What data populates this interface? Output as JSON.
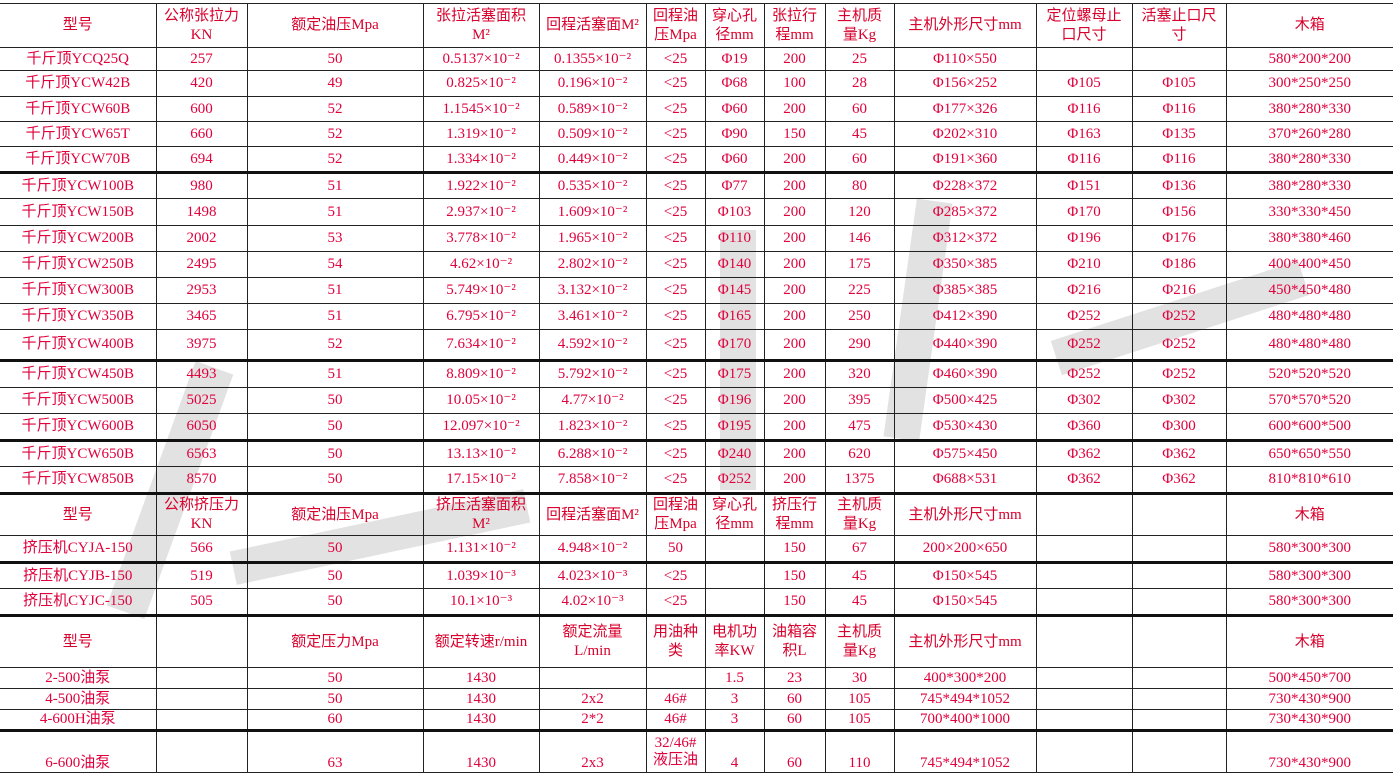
{
  "colors": {
    "text": "#e0003c",
    "header": "#d8002c",
    "border": "#222222"
  },
  "sections": [
    {
      "header": [
        "型号",
        "公称张拉力\nKN",
        "额定油压Mpa",
        "张拉活塞面积\nM²",
        "回程活塞面M²",
        "回程油\n压Mpa",
        "穿心孔\n径mm",
        "张拉行\n程mm",
        "主机质\n量Kg",
        "主机外形尺寸mm",
        "定位螺母止\n口尺寸",
        "活塞止口尺\n寸",
        "木箱"
      ],
      "rows": [
        [
          "千斤顶YCQ25Q",
          "257",
          "50",
          "0.5137×10⁻²",
          "0.1355×10⁻²",
          "<25",
          "Φ19",
          "200",
          "25",
          "Φ110×550",
          "",
          "",
          "580*200*200"
        ],
        [
          "千斤顶YCW42B",
          "420",
          "49",
          "0.825×10⁻²",
          "0.196×10⁻²",
          "<25",
          "Φ68",
          "100",
          "28",
          "Φ156×252",
          "Φ105",
          "Φ105",
          "300*250*250"
        ],
        [
          "千斤顶YCW60B",
          "600",
          "52",
          "1.1545×10⁻²",
          "0.589×10⁻²",
          "<25",
          "Φ60",
          "200",
          "60",
          "Φ177×326",
          "Φ116",
          "Φ116",
          "380*280*330"
        ],
        [
          "千斤顶YCW65T",
          "660",
          "52",
          "1.319×10⁻²",
          "0.509×10⁻²",
          "<25",
          "Φ90",
          "150",
          "45",
          "Φ202×310",
          "Φ163",
          "Φ135",
          "370*260*280"
        ],
        [
          "千斤顶YCW70B",
          "694",
          "52",
          "1.334×10⁻²",
          "0.449×10⁻²",
          "<25",
          "Φ60",
          "200",
          "60",
          "Φ191×360",
          "Φ116",
          "Φ116",
          "380*280*330"
        ],
        [
          "千斤顶YCW100B",
          "980",
          "51",
          "1.922×10⁻²",
          "0.535×10⁻²",
          "<25",
          "Φ77",
          "200",
          "80",
          "Φ228×372",
          "Φ151",
          "Φ136",
          "380*280*330"
        ],
        [
          "千斤顶YCW150B",
          "1498",
          "51",
          "2.937×10⁻²",
          "1.609×10⁻²",
          "<25",
          "Φ103",
          "200",
          "120",
          "Φ285×372",
          "Φ170",
          "Φ156",
          "330*330*450"
        ],
        [
          "千斤顶YCW200B",
          "2002",
          "53",
          "3.778×10⁻²",
          "1.965×10⁻²",
          "<25",
          "Φ110",
          "200",
          "146",
          "Φ312×372",
          "Φ196",
          "Φ176",
          "380*380*460"
        ],
        [
          "千斤顶YCW250B",
          "2495",
          "54",
          "4.62×10⁻²",
          "2.802×10⁻²",
          "<25",
          "Φ140",
          "200",
          "175",
          "Φ350×385",
          "Φ210",
          "Φ186",
          "400*400*450"
        ],
        [
          "千斤顶YCW300B",
          "2953",
          "51",
          "5.749×10⁻²",
          "3.132×10⁻²",
          "<25",
          "Φ145",
          "200",
          "225",
          "Φ385×385",
          "Φ216",
          "Φ216",
          "450*450*480"
        ],
        [
          "千斤顶YCW350B",
          "3465",
          "51",
          "6.795×10⁻²",
          "3.461×10⁻²",
          "<25",
          "Φ165",
          "200",
          "250",
          "Φ412×390",
          "Φ252",
          "Φ252",
          "480*480*480"
        ],
        [
          "千斤顶YCW400B",
          "3975",
          "52",
          "7.634×10⁻²",
          "4.592×10⁻²",
          "<25",
          "Φ170",
          "200",
          "290",
          "Φ440×390",
          "Φ252",
          "Φ252",
          "480*480*480"
        ],
        [
          "千斤顶YCW450B",
          "4493",
          "51",
          "8.809×10⁻²",
          "5.792×10⁻²",
          "<25",
          "Φ175",
          "200",
          "320",
          "Φ460×390",
          "Φ252",
          "Φ252",
          "520*520*520"
        ],
        [
          "千斤顶YCW500B",
          "5025",
          "50",
          "10.05×10⁻²",
          "4.77×10⁻²",
          "<25",
          "Φ196",
          "200",
          "395",
          "Φ500×425",
          "Φ302",
          "Φ302",
          "570*570*520"
        ],
        [
          "千斤顶YCW600B",
          "6050",
          "50",
          "12.097×10⁻²",
          "1.823×10⁻²",
          "<25",
          "Φ195",
          "200",
          "475",
          "Φ530×430",
          "Φ360",
          "Φ300",
          "600*600*500"
        ],
        [
          "千斤顶YCW650B",
          "6563",
          "50",
          "13.13×10⁻²",
          "6.288×10⁻²",
          "<25",
          "Φ240",
          "200",
          "620",
          "Φ575×450",
          "Φ362",
          "Φ362",
          "650*650*550"
        ],
        [
          "千斤顶YCW850B",
          "8570",
          "50",
          "17.15×10⁻²",
          "7.858×10⁻²",
          "<25",
          "Φ252",
          "200",
          "1375",
          "Φ688×531",
          "Φ362",
          "Φ362",
          "810*810*610"
        ]
      ]
    },
    {
      "header": [
        "型号",
        "公称挤压力\nKN",
        "额定油压Mpa",
        "挤压活塞面积\nM²",
        "回程活塞面M²",
        "回程油\n压Mpa",
        "穿心孔\n径mm",
        "挤压行\n程mm",
        "主机质\n量Kg",
        "主机外形尺寸mm",
        "",
        "",
        "木箱"
      ],
      "rows": [
        [
          "挤压机CYJA-150",
          "566",
          "50",
          "1.131×10⁻²",
          "4.948×10⁻²",
          "50",
          "",
          "150",
          "67",
          "200×200×650",
          "",
          "",
          "580*300*300"
        ],
        [
          "挤压机CYJB-150",
          "519",
          "50",
          "1.039×10⁻³",
          "4.023×10⁻³",
          "<25",
          "",
          "150",
          "45",
          "Φ150×545",
          "",
          "",
          "580*300*300"
        ],
        [
          "挤压机CYJC-150",
          "505",
          "50",
          "10.1×10⁻³",
          "4.02×10⁻³",
          "<25",
          "",
          "150",
          "45",
          "Φ150×545",
          "",
          "",
          "580*300*300"
        ]
      ]
    },
    {
      "header": [
        "型号",
        "",
        "额定压力Mpa",
        "额定转速r/min",
        "额定流量\nL/min",
        "用油种\n类",
        "电机功\n率KW",
        "油箱容\n积L",
        "主机质\n量Kg",
        "主机外形尺寸mm",
        "",
        "",
        "木箱"
      ],
      "rows": [
        [
          "2-500油泵",
          "",
          "50",
          "1430",
          "",
          "",
          "1.5",
          "23",
          "30",
          "400*300*200",
          "",
          "",
          "500*450*700"
        ],
        [
          "4-500油泵",
          "",
          "50",
          "1430",
          "2x2",
          "46#",
          "3",
          "60",
          "105",
          "745*494*1052",
          "",
          "",
          "730*430*900"
        ],
        [
          "4-600H油泵",
          "",
          "60",
          "1430",
          "2*2",
          "46#",
          "3",
          "60",
          "105",
          "700*400*1000",
          "",
          "",
          "730*430*900"
        ],
        [
          "6-600油泵",
          "",
          "63",
          "1430",
          "2x3",
          "32/46#\n液压油",
          "4",
          "60",
          "110",
          "745*494*1052",
          "",
          "",
          "730*430*900"
        ]
      ]
    }
  ]
}
